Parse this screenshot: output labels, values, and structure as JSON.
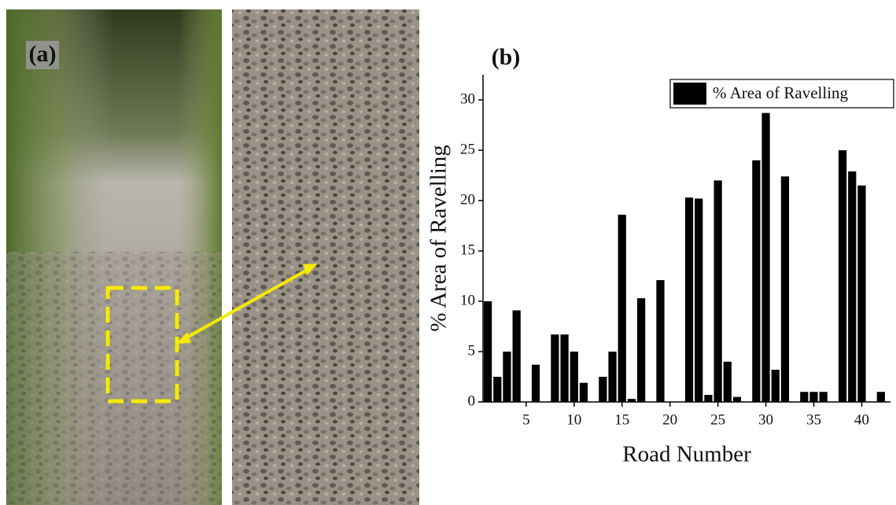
{
  "panel_a": {
    "label": "(a)"
  },
  "chart_data": {
    "type": "bar",
    "panel_label": "(b)",
    "x_label": "Road Number",
    "y_label": "% Area of Ravelling",
    "x": [
      1,
      2,
      3,
      4,
      5,
      6,
      7,
      8,
      9,
      10,
      11,
      12,
      13,
      14,
      15,
      16,
      17,
      18,
      19,
      20,
      21,
      22,
      23,
      24,
      25,
      26,
      27,
      28,
      29,
      30,
      31,
      32,
      33,
      34,
      35,
      36,
      37,
      38,
      39,
      40,
      41,
      42
    ],
    "series": [
      {
        "name": "% Area of Ravelling",
        "color": "#000000",
        "values": [
          10,
          2.5,
          5,
          9.1,
          0,
          3.7,
          0,
          6.7,
          6.7,
          5,
          1.9,
          0,
          2.5,
          5,
          18.6,
          0.3,
          10.3,
          0,
          12.1,
          0,
          0,
          20.3,
          20.2,
          0.7,
          22,
          4,
          0.5,
          0,
          24,
          28.7,
          3.2,
          22.4,
          0,
          1,
          1,
          1,
          0,
          25,
          22.9,
          21.5,
          0,
          1
        ]
      }
    ],
    "xlim": [
      0.5,
      43
    ],
    "ylim": [
      0,
      32.5
    ],
    "xticks": [
      5,
      10,
      15,
      20,
      25,
      30,
      35,
      40
    ],
    "yticks": [
      0,
      5,
      10,
      15,
      20,
      25,
      30
    ],
    "legend": "top-right"
  }
}
